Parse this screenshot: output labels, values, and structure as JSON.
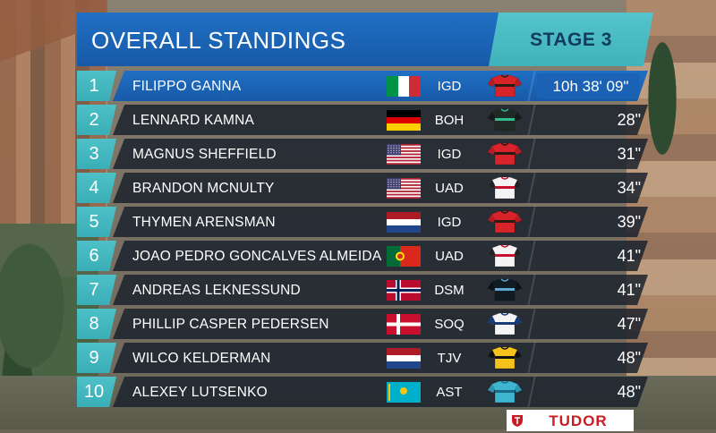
{
  "header": {
    "title": "OVERALL STANDINGS",
    "stage": "STAGE 3"
  },
  "standings": [
    {
      "pos": "1",
      "name": "FILIPPO GANNA",
      "team": "IGD",
      "time": "10h 38' 09\"",
      "flag": "italy",
      "jersey": "ineos-jersey"
    },
    {
      "pos": "2",
      "name": "LENNARD KAMNA",
      "team": "BOH",
      "time": "28\"",
      "flag": "germany",
      "jersey": "bora-jersey"
    },
    {
      "pos": "3",
      "name": "MAGNUS SHEFFIELD",
      "team": "IGD",
      "time": "31\"",
      "flag": "usa",
      "jersey": "ineos-jersey"
    },
    {
      "pos": "4",
      "name": "BRANDON MCNULTY",
      "team": "UAD",
      "time": "34\"",
      "flag": "usa",
      "jersey": "uae-jersey"
    },
    {
      "pos": "5",
      "name": "THYMEN ARENSMAN",
      "team": "IGD",
      "time": "39\"",
      "flag": "netherlands",
      "jersey": "ineos-jersey"
    },
    {
      "pos": "6",
      "name": "JOAO PEDRO GONCALVES ALMEIDA",
      "team": "UAD",
      "time": "41\"",
      "flag": "portugal",
      "jersey": "uae-jersey"
    },
    {
      "pos": "7",
      "name": "ANDREAS LEKNESSUND",
      "team": "DSM",
      "time": "41\"",
      "flag": "norway",
      "jersey": "dsm-jersey"
    },
    {
      "pos": "8",
      "name": "PHILLIP CASPER PEDERSEN",
      "team": "SOQ",
      "time": "47\"",
      "flag": "denmark",
      "jersey": "soudal-jersey"
    },
    {
      "pos": "9",
      "name": "WILCO KELDERMAN",
      "team": "TJV",
      "time": "48\"",
      "flag": "netherlands",
      "jersey": "jumbo-jersey"
    },
    {
      "pos": "10",
      "name": "ALEXEY LUTSENKO",
      "team": "AST",
      "time": "48\"",
      "flag": "kazakhstan",
      "jersey": "astana-jersey"
    }
  ],
  "sponsor": {
    "text": "TUDOR"
  },
  "colors": {
    "header_blue": "#1f6fc4",
    "stage_teal": "#4ec0c7",
    "row_dark": "#19212c",
    "sponsor_red": "#c81d25"
  }
}
